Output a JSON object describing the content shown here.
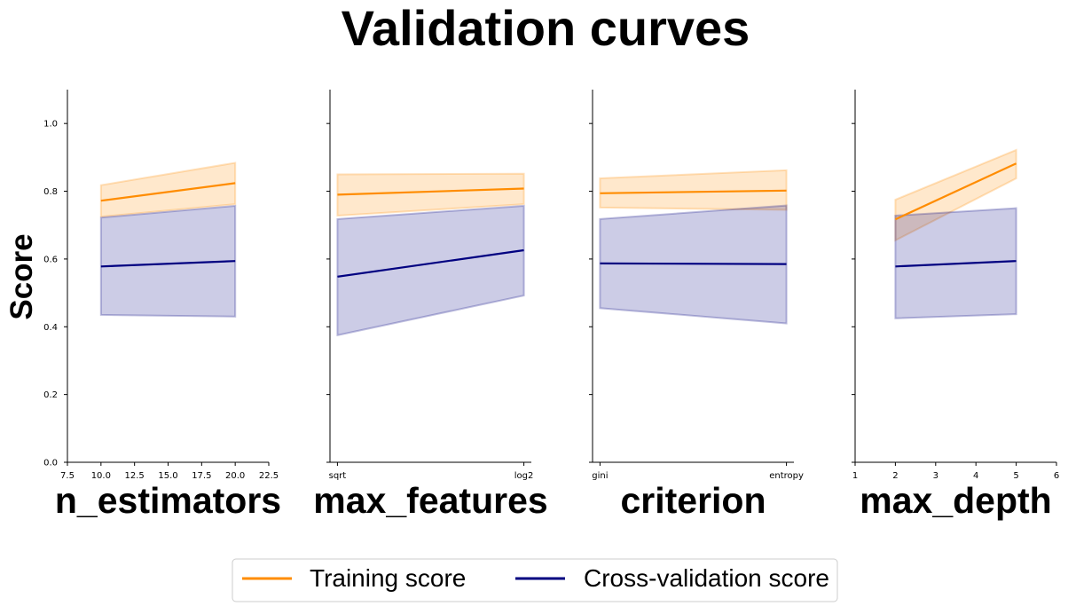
{
  "title": "Validation curves",
  "ylabel": "Score",
  "colors": {
    "train": "#ff8c00",
    "cv": "#000080"
  },
  "legend": {
    "entries": [
      "Training score",
      "Cross-validation score"
    ],
    "placement": "bottom-center"
  },
  "chart_data": [
    {
      "type": "line",
      "xlabel": "n_estimators",
      "x_kind": "numeric",
      "xlim": [
        7.5,
        22.5
      ],
      "xticks": [
        7.5,
        10.0,
        12.5,
        15.0,
        17.5,
        20.0,
        22.5
      ],
      "xtick_labels": [
        "7.5",
        "10.0",
        "12.5",
        "15.0",
        "17.5",
        "20.0",
        "22.5"
      ],
      "x": [
        10,
        20
      ],
      "ylim": [
        0,
        1.1
      ],
      "yticks": [
        0.0,
        0.2,
        0.4,
        0.6,
        0.8,
        1.0
      ],
      "ytick_labels": [
        "0.0",
        "0.2",
        "0.4",
        "0.6",
        "0.8",
        "1.0"
      ],
      "series": [
        {
          "name": "Training score",
          "values": [
            0.772,
            0.824
          ],
          "lower": [
            0.725,
            0.762
          ],
          "upper": [
            0.818,
            0.884
          ]
        },
        {
          "name": "Cross-validation score",
          "values": [
            0.578,
            0.594
          ],
          "lower": [
            0.435,
            0.43
          ],
          "upper": [
            0.722,
            0.757
          ]
        }
      ]
    },
    {
      "type": "line",
      "xlabel": "max_features",
      "x_kind": "categorical",
      "xlim": [
        -0.04,
        1.04
      ],
      "categories": [
        "sqrt",
        "log2"
      ],
      "xticks": [
        0,
        1
      ],
      "xtick_labels": [
        "sqrt",
        "log2"
      ],
      "x": [
        0,
        1
      ],
      "ylim": [
        0,
        1.1
      ],
      "yticks": [
        0.0,
        0.2,
        0.4,
        0.6,
        0.8,
        1.0
      ],
      "series": [
        {
          "name": "Training score",
          "values": [
            0.79,
            0.808
          ],
          "lower": [
            0.728,
            0.762
          ],
          "upper": [
            0.85,
            0.852
          ]
        },
        {
          "name": "Cross-validation score",
          "values": [
            0.548,
            0.626
          ],
          "lower": [
            0.375,
            0.492
          ],
          "upper": [
            0.718,
            0.757
          ]
        }
      ]
    },
    {
      "type": "line",
      "xlabel": "criterion",
      "x_kind": "categorical",
      "xlim": [
        -0.04,
        1.04
      ],
      "categories": [
        "gini",
        "entropy"
      ],
      "xticks": [
        0,
        1
      ],
      "xtick_labels": [
        "gini",
        "entropy"
      ],
      "x": [
        0,
        1
      ],
      "ylim": [
        0,
        1.1
      ],
      "yticks": [
        0.0,
        0.2,
        0.4,
        0.6,
        0.8,
        1.0
      ],
      "series": [
        {
          "name": "Training score",
          "values": [
            0.794,
            0.802
          ],
          "lower": [
            0.752,
            0.745
          ],
          "upper": [
            0.838,
            0.862
          ]
        },
        {
          "name": "Cross-validation score",
          "values": [
            0.587,
            0.585
          ],
          "lower": [
            0.455,
            0.41
          ],
          "upper": [
            0.718,
            0.758
          ]
        }
      ]
    },
    {
      "type": "line",
      "xlabel": "max_depth",
      "x_kind": "numeric",
      "xlim": [
        1,
        6
      ],
      "xticks": [
        1,
        2,
        3,
        4,
        5,
        6
      ],
      "xtick_labels": [
        "1",
        "2",
        "3",
        "4",
        "5",
        "6"
      ],
      "x": [
        2,
        5
      ],
      "ylim": [
        0,
        1.1
      ],
      "yticks": [
        0.0,
        0.2,
        0.4,
        0.6,
        0.8,
        1.0
      ],
      "series": [
        {
          "name": "Training score",
          "values": [
            0.717,
            0.882
          ],
          "lower": [
            0.655,
            0.838
          ],
          "upper": [
            0.775,
            0.922
          ]
        },
        {
          "name": "Cross-validation score",
          "values": [
            0.578,
            0.594
          ],
          "lower": [
            0.425,
            0.437
          ],
          "upper": [
            0.728,
            0.75
          ]
        }
      ]
    }
  ]
}
